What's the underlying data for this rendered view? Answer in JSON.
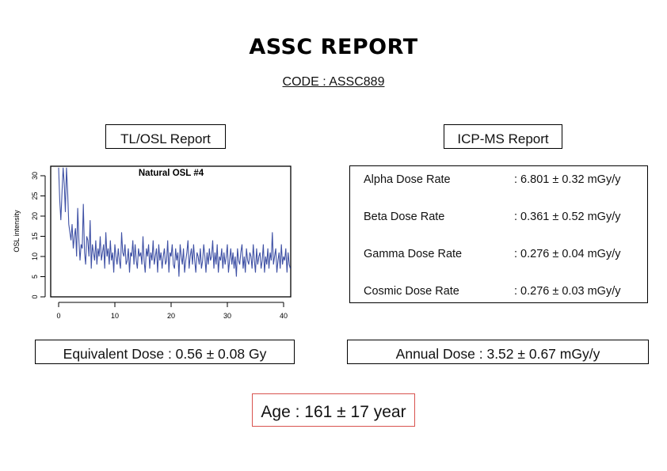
{
  "report": {
    "title": "ASSC REPORT",
    "code": "CODE : ASSC889"
  },
  "tl_osl": {
    "heading": "TL/OSL Report",
    "equivalent_dose": "Equivalent Dose : 0.56 ± 0.08 Gy"
  },
  "icp_ms": {
    "heading": "ICP-MS Report",
    "rates": [
      {
        "label": "Alpha Dose Rate",
        "value": ": 6.801 ± 0.32 mGy/y"
      },
      {
        "label": "Beta Dose Rate",
        "value": ": 0.361 ± 0.52 mGy/y"
      },
      {
        "label": "Gamma Dose Rate",
        "value": ": 0.276 ± 0.04 mGy/y"
      },
      {
        "label": "Cosmic Dose Rate",
        "value": ": 0.276 ± 0.03 mGy/y"
      }
    ],
    "annual_dose": "Annual Dose : 3.52 ± 0.67 mGy/y"
  },
  "age": "Age : 161 ± 17 year",
  "colors": {
    "series": "#3f51a5",
    "age_border": "#d9534f"
  },
  "chart_data": {
    "type": "line",
    "title": "Natural OSL #4",
    "xlabel": "",
    "ylabel": "OSL intensity",
    "xlim": [
      0,
      40
    ],
    "ylim": [
      0,
      32
    ],
    "xticks": [
      0,
      10,
      20,
      30,
      40
    ],
    "yticks": [
      0,
      5,
      10,
      15,
      20,
      25,
      30
    ],
    "grid": false,
    "series": [
      {
        "values_x_start": 0,
        "values_x_step": 0.2,
        "values": [
          32,
          24,
          19,
          26,
          32,
          28,
          21,
          32,
          26,
          18,
          16,
          14,
          18,
          12,
          15,
          17,
          10,
          22,
          14,
          9,
          13,
          12,
          23,
          11,
          8,
          15,
          14,
          10,
          19,
          7,
          13,
          11,
          9,
          14,
          8,
          12,
          10,
          15,
          9,
          11,
          13,
          7,
          16,
          10,
          12,
          8,
          14,
          9,
          11,
          6,
          13,
          10,
          8,
          12,
          9,
          7,
          16,
          11,
          10,
          13,
          8,
          9,
          12,
          6,
          11,
          10,
          14,
          8,
          13,
          9,
          7,
          12,
          10,
          11,
          8,
          15,
          9,
          6,
          12,
          10,
          13,
          7,
          11,
          9,
          14,
          8,
          10,
          12,
          6,
          13,
          9,
          11,
          7,
          10,
          12,
          8,
          9,
          14,
          6,
          11,
          10,
          13,
          8,
          7,
          12,
          9,
          11,
          5,
          13,
          10,
          8,
          12,
          6,
          9,
          11,
          14,
          7,
          10,
          12,
          8,
          13,
          9,
          6,
          11,
          10,
          8,
          12,
          7,
          9,
          13,
          10,
          6,
          11,
          8,
          12,
          9,
          10,
          14,
          7,
          11,
          8,
          13,
          6,
          10,
          9,
          12,
          7,
          11,
          8,
          10,
          13,
          6,
          9,
          12,
          8,
          11,
          7,
          10,
          5,
          12,
          9,
          8,
          11,
          13,
          7,
          10,
          6,
          12,
          9,
          8,
          11,
          10,
          7,
          13,
          9,
          6,
          12,
          8,
          10,
          11,
          7,
          9,
          13,
          6,
          10,
          8,
          12,
          7,
          11,
          9,
          16,
          8,
          10,
          12,
          6,
          9,
          11,
          7,
          13,
          8,
          10,
          9,
          12,
          6,
          11,
          8,
          7
        ]
      }
    ]
  }
}
